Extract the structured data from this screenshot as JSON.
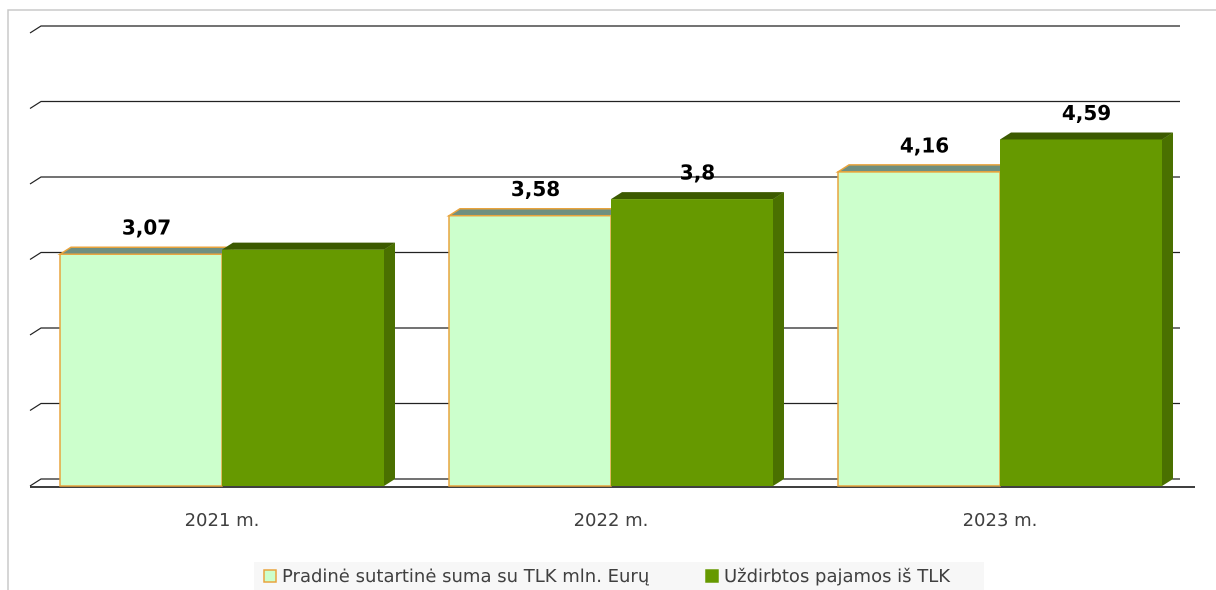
{
  "chart_data": {
    "type": "bar3d",
    "categories": [
      "2021 m.",
      "2022 m.",
      "2023 m."
    ],
    "series": [
      {
        "name": "Pradinė sutartinė suma su TLK mln. Eurų",
        "color": "#ccffcc",
        "edge": "#e8a33c",
        "top": "#6f8f80",
        "values": [
          3.07,
          3.58,
          4.16
        ],
        "value_labels": [
          "3,07",
          "3,58",
          "4,16"
        ]
      },
      {
        "name": "Uždirbtos pajamos iš TLK",
        "color": "#669900",
        "side": "#4a7000",
        "top": "#3c5a00",
        "values": [
          3.13,
          3.8,
          4.59
        ],
        "value_labels": [
          null,
          "3,8",
          "4,59"
        ]
      }
    ],
    "ylim": [
      0,
      6
    ],
    "yticks": [
      0,
      1,
      2,
      3,
      4,
      5,
      6
    ],
    "grid": true
  }
}
